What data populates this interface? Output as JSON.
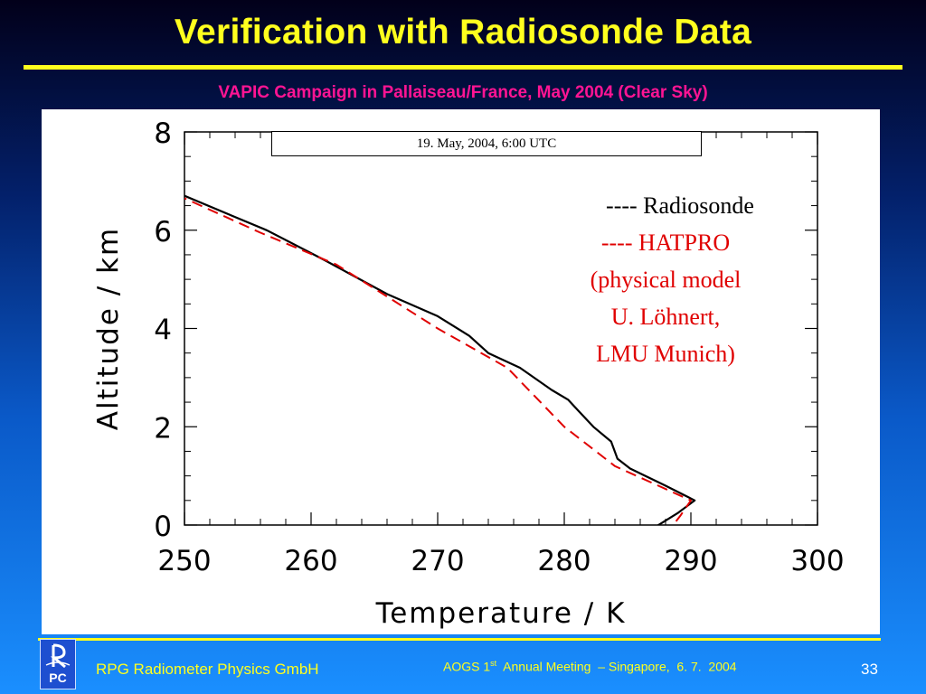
{
  "slide": {
    "title": "Verification with Radiosonde Data",
    "subtitle": "VAPIC Campaign in Pallaiseau/France, May 2004 (Clear Sky)",
    "footer_left": "RPG Radiometer Physics GmbH",
    "footer_right_pre": "AOGS 1",
    "footer_right_sup": "st",
    "footer_right_post": "  Annual Meeting  – Singapore,  6. 7.  2004",
    "page_number": "33",
    "logo_text": "PC",
    "colors": {
      "title": "#ffff1e",
      "subtitle": "#ff1493",
      "rule": "#ffff1e",
      "hatpro": "#e00000",
      "radiosonde": "#000000"
    }
  },
  "chart_data": {
    "type": "line",
    "date_label": "19. May, 2004, 6:00 UTC",
    "xlabel": "Temperature / K",
    "ylabel": "Altitude / km",
    "xlim": [
      250,
      300
    ],
    "ylim": [
      0,
      8
    ],
    "x_ticks": [
      "250",
      "260",
      "270",
      "280",
      "290",
      "300"
    ],
    "y_ticks": [
      "0",
      "2",
      "4",
      "6",
      "8"
    ],
    "legend": {
      "radiosonde": "---- Radiosonde",
      "hatpro_lines": [
        "---- HATPRO",
        "(physical model",
        "U. Löhnert,",
        "LMU Munich)"
      ]
    },
    "series": [
      {
        "name": "Radiosonde",
        "color": "#000000",
        "style": "solid",
        "points": [
          [
            286.5,
            -0.15
          ],
          [
            289,
            0.25
          ],
          [
            290.3,
            0.5
          ],
          [
            288,
            0.8
          ],
          [
            285.2,
            1.15
          ],
          [
            284.2,
            1.35
          ],
          [
            283.7,
            1.7
          ],
          [
            282.3,
            2.0
          ],
          [
            281.2,
            2.3
          ],
          [
            280.3,
            2.55
          ],
          [
            279,
            2.75
          ],
          [
            276.5,
            3.2
          ],
          [
            274,
            3.5
          ],
          [
            272.5,
            3.85
          ],
          [
            270,
            4.25
          ],
          [
            266,
            4.7
          ],
          [
            261,
            5.4
          ],
          [
            256.5,
            6.0
          ],
          [
            250,
            6.7
          ]
        ]
      },
      {
        "name": "HATPRO",
        "color": "#e00000",
        "style": "dashed",
        "points": [
          [
            288,
            -0.2
          ],
          [
            289.2,
            0.2
          ],
          [
            290,
            0.5
          ],
          [
            284,
            1.2
          ],
          [
            280,
            2.0
          ],
          [
            275.5,
            3.2
          ],
          [
            270,
            4.0
          ],
          [
            262,
            5.3
          ],
          [
            256,
            5.95
          ],
          [
            250,
            6.65
          ]
        ]
      }
    ]
  }
}
